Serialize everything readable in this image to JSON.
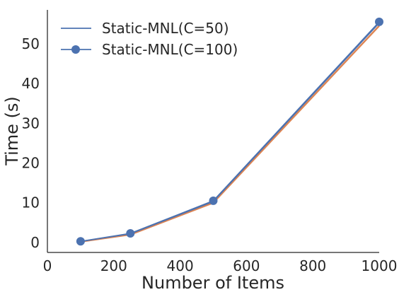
{
  "chart_data": {
    "type": "line",
    "xlabel": "Number of Items",
    "ylabel": "Time (s)",
    "xlim": [
      0,
      1000
    ],
    "ylim": [
      -2.5,
      58.5
    ],
    "x_ticks": [
      0,
      200,
      400,
      600,
      800,
      1000
    ],
    "y_ticks": [
      0,
      10,
      20,
      30,
      40,
      50
    ],
    "grid": false,
    "legend_position": "top-left",
    "x": [
      100,
      250,
      500,
      1000
    ],
    "series": [
      {
        "name": "",
        "color": "#dd8452",
        "marker": "none",
        "values": [
          0.2,
          2.0,
          10.0,
          54.5
        ]
      },
      {
        "name": "Static-MNL(C=50)",
        "color": "#4c72b0",
        "marker": "none",
        "values": [
          0.25,
          2.2,
          10.3,
          55.2
        ]
      },
      {
        "name": "Static-MNL(C=100)",
        "color": "#4c72b0",
        "marker": "circle",
        "values": [
          0.3,
          2.3,
          10.5,
          55.5
        ]
      }
    ]
  }
}
